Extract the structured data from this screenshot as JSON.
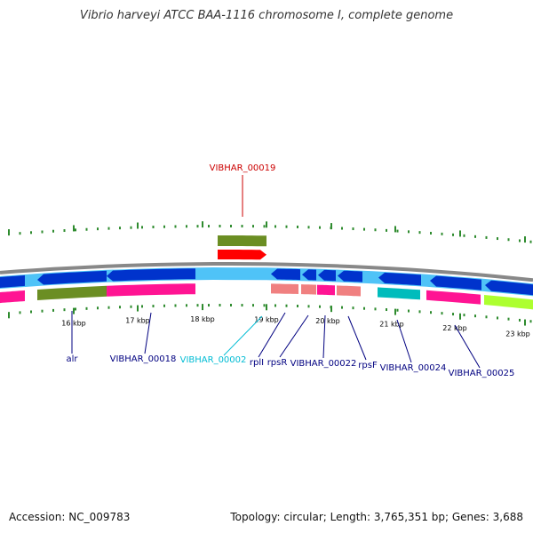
{
  "title": "Vibrio harveyi ATCC BAA-1116 chromosome I, complete genome",
  "footer": {
    "accession": "Accession: NC_009783",
    "summary": "Topology: circular; Length: 3,765,351 bp; Genes: 3,688"
  },
  "colors": {
    "backbone": "#888888",
    "tick": "#2e8b2e",
    "label_default": "#000080",
    "label_highlight": "#cc0000",
    "label_cyan": "#00bcd4"
  },
  "scale_labels": [
    "16 kbp",
    "17 kbp",
    "18 kbp",
    "19 kbp",
    "20 kbp",
    "21 kbp",
    "22 kbp",
    "23 kbp"
  ],
  "gene_labels": [
    {
      "name": "VIBHAR_00019",
      "color": "#cc0000"
    },
    {
      "name": "alr",
      "color": "#000080"
    },
    {
      "name": "VIBHAR_00018",
      "color": "#000080"
    },
    {
      "name": "VIBHAR_00002",
      "color": "#00bcd4"
    },
    {
      "name": "rplI",
      "color": "#000080"
    },
    {
      "name": "rpsR",
      "color": "#000080"
    },
    {
      "name": "VIBHAR_00022",
      "color": "#000080"
    },
    {
      "name": "rpsF",
      "color": "#000080"
    },
    {
      "name": "VIBHAR_00024",
      "color": "#000080"
    },
    {
      "name": "VIBHAR_00025",
      "color": "#000080"
    }
  ]
}
